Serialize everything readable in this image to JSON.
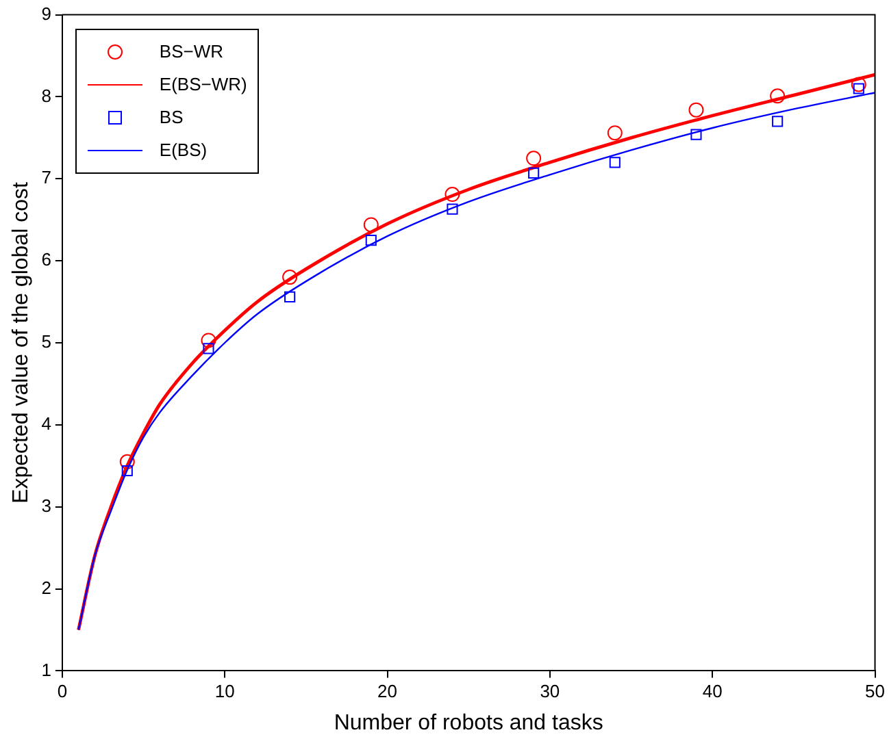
{
  "chart_data": {
    "type": "line",
    "xlabel": "Number of robots and tasks",
    "ylabel": "Expected value of the global cost",
    "xlim": [
      0,
      50
    ],
    "xticks": [
      0,
      10,
      20,
      30,
      40,
      50
    ],
    "ylim": [
      1,
      9
    ],
    "yticks": [
      1,
      2,
      3,
      4,
      5,
      6,
      7,
      8,
      9
    ],
    "grid": false,
    "legend": "top left",
    "line_style": "solid",
    "series": [
      {
        "name": "BS−WR",
        "type": "scatter",
        "marker": "circle",
        "color": "#ff0000",
        "x": [
          4,
          9,
          14,
          19,
          24,
          29,
          34,
          39,
          44,
          49
        ],
        "values": [
          3.55,
          5.03,
          5.8,
          6.44,
          6.81,
          7.25,
          7.56,
          7.84,
          8.01,
          8.15
        ]
      },
      {
        "name": "E(BS−WR)",
        "type": "line",
        "marker": "none",
        "color": "#ff0000",
        "x": [
          1,
          2,
          3,
          4,
          5,
          6,
          8,
          10,
          12,
          15,
          20,
          25,
          30,
          35,
          40,
          45,
          50
        ],
        "values": [
          1.5,
          2.4,
          3.0,
          3.5,
          3.9,
          4.25,
          4.75,
          5.15,
          5.5,
          5.9,
          6.45,
          6.87,
          7.2,
          7.5,
          7.77,
          8.02,
          8.27
        ]
      },
      {
        "name": "BS",
        "type": "scatter",
        "marker": "square",
        "color": "#0000ff",
        "x": [
          4,
          9,
          14,
          19,
          24,
          29,
          34,
          39,
          44,
          49
        ],
        "values": [
          3.44,
          4.93,
          5.56,
          6.25,
          6.63,
          7.07,
          7.2,
          7.54,
          7.7,
          8.1
        ]
      },
      {
        "name": "E(BS)",
        "type": "line",
        "marker": "none",
        "color": "#0000ff",
        "x": [
          1,
          2,
          3,
          4,
          5,
          6,
          8,
          10,
          12,
          15,
          20,
          25,
          30,
          35,
          40,
          45,
          50
        ],
        "values": [
          1.5,
          2.4,
          2.95,
          3.45,
          3.85,
          4.15,
          4.6,
          5.0,
          5.35,
          5.75,
          6.3,
          6.72,
          7.05,
          7.35,
          7.62,
          7.85,
          8.05
        ]
      }
    ]
  }
}
